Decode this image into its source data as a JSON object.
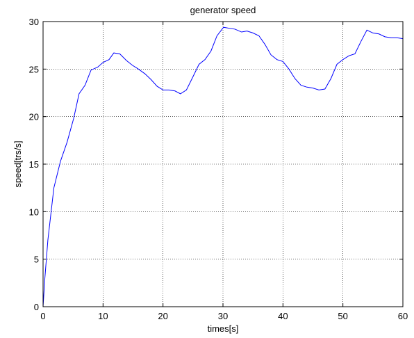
{
  "chart_data": {
    "type": "line",
    "title": "generator speed",
    "xlabel": "times[s]",
    "ylabel": "speed[trs/s]",
    "xlim": [
      0,
      60
    ],
    "ylim": [
      0,
      30
    ],
    "xticks": [
      0,
      10,
      20,
      30,
      40,
      50,
      60
    ],
    "yticks": [
      0,
      5,
      10,
      15,
      20,
      25,
      30
    ],
    "xtick_labels": [
      "0",
      "10",
      "20",
      "30",
      "40",
      "50",
      "60"
    ],
    "ytick_labels": [
      "0",
      "5",
      "10",
      "15",
      "20",
      "25",
      "30"
    ],
    "grid": true,
    "line_color": "#0000ff",
    "grid_color": "#000000",
    "series": [
      {
        "x": [
          0,
          0.3,
          0.8,
          1.8,
          2.9,
          4.0,
          5.1,
          6.0,
          7.0,
          8.0,
          9.1,
          10.0,
          11.0,
          11.8,
          12.8,
          13.9,
          14.9,
          15.9,
          17.0,
          18.0,
          19.0,
          20.0,
          21.0,
          22.0,
          22.9,
          23.9,
          25.0,
          26.0,
          27.0,
          28.0,
          29.0,
          30.1,
          31.0,
          32.0,
          33.1,
          34.0,
          35.0,
          36.0,
          37.0,
          38.0,
          39.0,
          40.0,
          41.0,
          42.0,
          43.0,
          44.0,
          45.0,
          46.0,
          47.0,
          48.0,
          49.0,
          50.0,
          51.0,
          52.0,
          53.0,
          54.0,
          55.0,
          56.0,
          57.0,
          58.0,
          59.0,
          60.0
        ],
        "values": [
          0,
          3.0,
          7.0,
          12.5,
          15.3,
          17.3,
          19.8,
          22.4,
          23.3,
          24.9,
          25.2,
          25.7,
          26.0,
          26.7,
          26.6,
          25.9,
          25.4,
          25.0,
          24.5,
          23.9,
          23.2,
          22.8,
          22.8,
          22.7,
          22.4,
          22.8,
          24.2,
          25.5,
          26.0,
          26.9,
          28.5,
          29.4,
          29.3,
          29.2,
          28.9,
          29.0,
          28.8,
          28.5,
          27.6,
          26.5,
          26.0,
          25.8,
          25.0,
          24.0,
          23.3,
          23.1,
          23.0,
          22.8,
          22.9,
          24.0,
          25.5,
          26.0,
          26.4,
          26.6,
          27.9,
          29.1,
          28.8,
          28.7,
          28.4,
          28.3,
          28.3,
          28.2
        ]
      }
    ]
  }
}
